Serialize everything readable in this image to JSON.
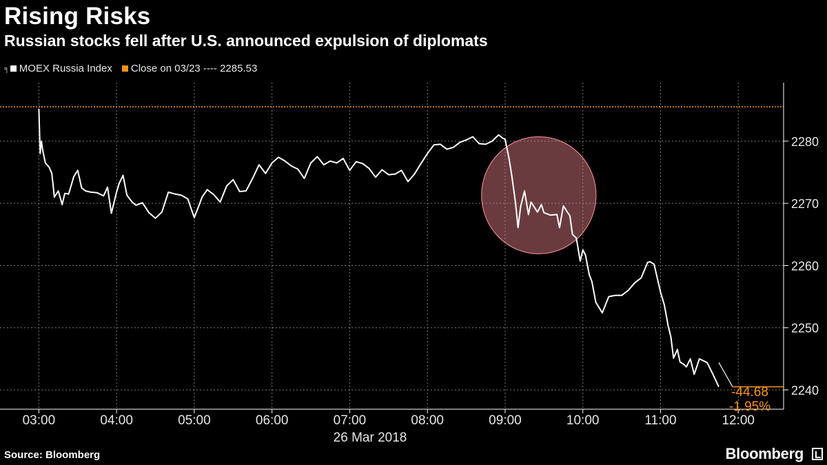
{
  "header": {
    "title": "Rising Risks",
    "subtitle": "Russian stocks fell after U.S. announced expulsion of diplomats"
  },
  "legend": {
    "series_label": "MOEX Russia Index",
    "reference_label": "Close on 03/23 ---- 2285.53"
  },
  "colors": {
    "background": "#000000",
    "series": "#ffffff",
    "reference": "#f7931e",
    "highlight": "#e8828c"
  },
  "chart_data": {
    "type": "line",
    "x_ticks": [
      "03:00",
      "04:00",
      "05:00",
      "06:00",
      "07:00",
      "08:00",
      "09:00",
      "10:00",
      "11:00",
      "12:00"
    ],
    "x_date_label": "26 Mar 2018",
    "y_ticks": [
      2240,
      2250,
      2260,
      2270,
      2280
    ],
    "ylim": [
      2236.9,
      2289.4
    ],
    "xlim": [
      "02:30",
      "12:35"
    ],
    "grid": true,
    "reference_line": {
      "label": "Close on 03/23",
      "value": 2285.53
    },
    "series": [
      {
        "name": "MOEX Russia Index",
        "x": [
          "03:00",
          "03:01",
          "03:02",
          "03:03",
          "03:05",
          "03:08",
          "03:10",
          "03:12",
          "03:15",
          "03:18",
          "03:20",
          "03:23",
          "03:27",
          "03:30",
          "03:33",
          "03:36",
          "03:40",
          "03:45",
          "03:50",
          "03:53",
          "03:56",
          "04:00",
          "04:02",
          "04:05",
          "04:08",
          "04:12",
          "04:15",
          "04:20",
          "04:25",
          "04:30",
          "04:35",
          "04:40",
          "04:45",
          "04:50",
          "04:55",
          "05:00",
          "05:03",
          "05:06",
          "05:10",
          "05:15",
          "05:20",
          "05:25",
          "05:30",
          "05:35",
          "05:40",
          "05:45",
          "05:50",
          "05:55",
          "06:00",
          "06:05",
          "06:10",
          "06:15",
          "06:20",
          "06:25",
          "06:30",
          "06:35",
          "06:40",
          "06:45",
          "06:50",
          "06:55",
          "07:00",
          "07:05",
          "07:10",
          "07:15",
          "07:20",
          "07:25",
          "07:30",
          "07:35",
          "07:40",
          "07:45",
          "07:50",
          "07:55",
          "08:00",
          "08:05",
          "08:10",
          "08:15",
          "08:20",
          "08:25",
          "08:30",
          "08:35",
          "08:40",
          "08:45",
          "08:50",
          "08:55",
          "08:58",
          "09:00",
          "09:03",
          "09:05",
          "09:08",
          "09:10",
          "09:12",
          "09:15",
          "09:18",
          "09:20",
          "09:25",
          "09:28",
          "09:30",
          "09:35",
          "09:40",
          "09:42",
          "09:45",
          "09:48",
          "09:50",
          "09:52",
          "09:55",
          "09:58",
          "10:00",
          "10:02",
          "10:05",
          "10:07",
          "10:10",
          "10:15",
          "10:20",
          "10:25",
          "10:30",
          "10:35",
          "10:40",
          "10:45",
          "10:50",
          "10:52",
          "10:55",
          "11:00",
          "11:03",
          "11:06",
          "11:08",
          "11:10",
          "11:13",
          "11:15",
          "11:18",
          "11:20",
          "11:23",
          "11:26",
          "11:30",
          "11:33",
          "11:36",
          "11:40",
          "11:45"
        ],
        "values": [
          2285.2,
          2278.0,
          2280.0,
          2278.5,
          2276.5,
          2275.8,
          2274.8,
          2271.0,
          2272.0,
          2269.8,
          2271.6,
          2271.5,
          2274.3,
          2275.3,
          2272.5,
          2272.0,
          2271.8,
          2271.7,
          2271.2,
          2272.6,
          2268.4,
          2271.8,
          2273.2,
          2274.5,
          2271.3,
          2270.2,
          2269.7,
          2270.1,
          2268.5,
          2267.6,
          2268.6,
          2271.8,
          2271.5,
          2271.3,
          2270.7,
          2267.7,
          2269.3,
          2271.0,
          2272.2,
          2271.4,
          2270.2,
          2272.8,
          2273.8,
          2271.9,
          2272.0,
          2274.0,
          2276.2,
          2274.8,
          2276.5,
          2277.4,
          2276.8,
          2276.0,
          2275.5,
          2274.0,
          2276.5,
          2277.5,
          2276.2,
          2276.8,
          2276.5,
          2277.2,
          2275.3,
          2276.7,
          2276.4,
          2275.6,
          2274.2,
          2275.4,
          2274.6,
          2274.7,
          2275.3,
          2273.5,
          2274.7,
          2276.4,
          2278.0,
          2279.4,
          2279.5,
          2278.7,
          2279.0,
          2279.8,
          2280.2,
          2280.7,
          2279.6,
          2279.5,
          2280.0,
          2281.0,
          2280.5,
          2280.3,
          2277.2,
          2274.7,
          2270.1,
          2266.1,
          2269.5,
          2272.0,
          2268.2,
          2270.2,
          2268.6,
          2269.8,
          2268.5,
          2268.1,
          2268.2,
          2266.1,
          2269.6,
          2268.6,
          2268.0,
          2265.0,
          2264.4,
          2260.7,
          2262.5,
          2261.7,
          2258.5,
          2257.4,
          2254.1,
          2252.4,
          2255.0,
          2255.2,
          2255.2,
          2256.0,
          2257.2,
          2258.0,
          2260.5,
          2260.6,
          2260.2,
          2255.7,
          2253.6,
          2250.2,
          2248.5,
          2245.1,
          2246.5,
          2244.5,
          2244.1,
          2243.7,
          2245.0,
          2242.5,
          2245.0,
          2244.7,
          2244.4,
          2242.7,
          2240.5
        ]
      }
    ],
    "last_change": {
      "absolute": "-44.68",
      "percent": "-1.95%"
    },
    "annotation": {
      "type": "circle",
      "from": "08:45",
      "to": "09:50"
    }
  },
  "footer": {
    "source": "Source: Bloomberg",
    "brand": "Bloomberg"
  }
}
